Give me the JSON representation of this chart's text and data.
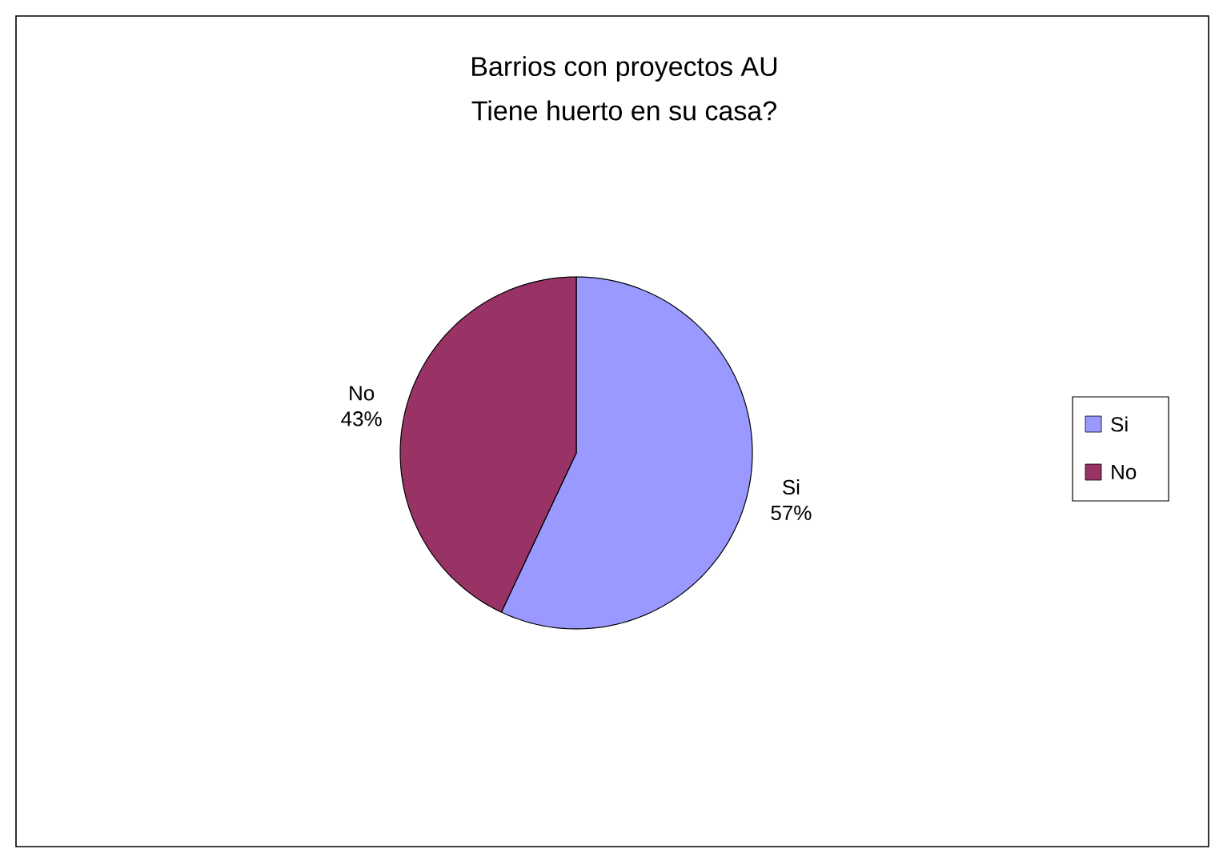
{
  "chart_data": {
    "type": "pie",
    "title": "Barrios con proyectos AU",
    "subtitle": "Tiene huerto en su casa?",
    "categories": [
      "Si",
      "No"
    ],
    "values": [
      57,
      43
    ],
    "colors": [
      "#9999ff",
      "#993366"
    ],
    "value_labels": [
      "57%",
      "43%"
    ],
    "legend": "right"
  }
}
